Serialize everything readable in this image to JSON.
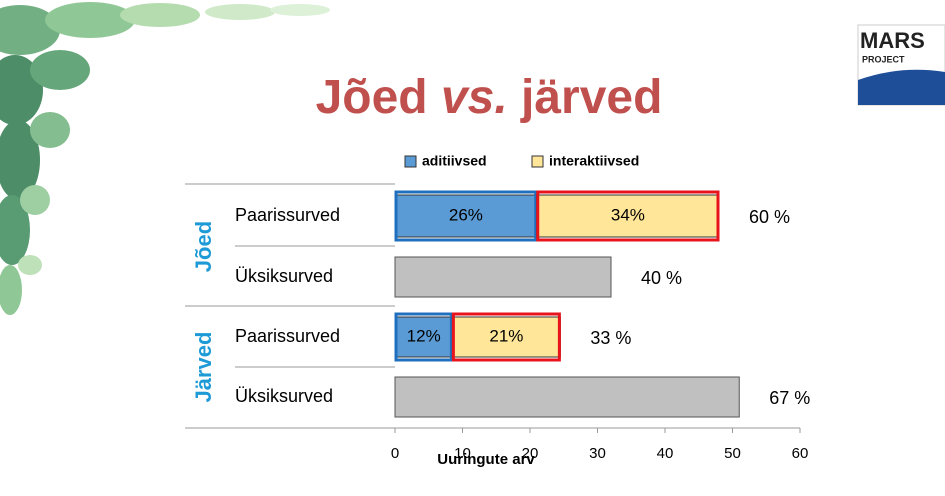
{
  "logo": {
    "name": "MARS",
    "subtitle": "PROJECT"
  },
  "chart_data": {
    "type": "hbar",
    "title_parts": [
      "Jõed",
      "vs.",
      "järved"
    ],
    "groups": [
      {
        "label": "Jõed",
        "rows": [
          0,
          1
        ]
      },
      {
        "label": "Järved",
        "rows": [
          2,
          3
        ]
      }
    ],
    "categories": [
      "Paarissurved",
      "Üksiksurved",
      "Paarissurved",
      "Üksiksurved"
    ],
    "series": [
      {
        "name": "aditiivsed",
        "color": "#5b9bd5",
        "outline": "#1f6fbf",
        "values": [
          21,
          null,
          8.5,
          null
        ],
        "segment_labels": [
          "26%",
          null,
          "12%",
          null
        ]
      },
      {
        "name": "interaktiivsed",
        "color": "#ffe699",
        "outline": "#e8141c",
        "values": [
          27,
          null,
          16,
          null
        ],
        "segment_labels": [
          "34%",
          null,
          "21%",
          null
        ]
      }
    ],
    "single_values": [
      null,
      32,
      null,
      51
    ],
    "single_color": "#c0c0c0",
    "total_labels": [
      "60 %",
      "40 %",
      "33 %",
      "67 %"
    ],
    "xlim": [
      0,
      60
    ],
    "xticks": [
      0,
      10,
      20,
      30,
      40,
      50,
      60
    ],
    "xlabel": "Uuringute arv"
  }
}
